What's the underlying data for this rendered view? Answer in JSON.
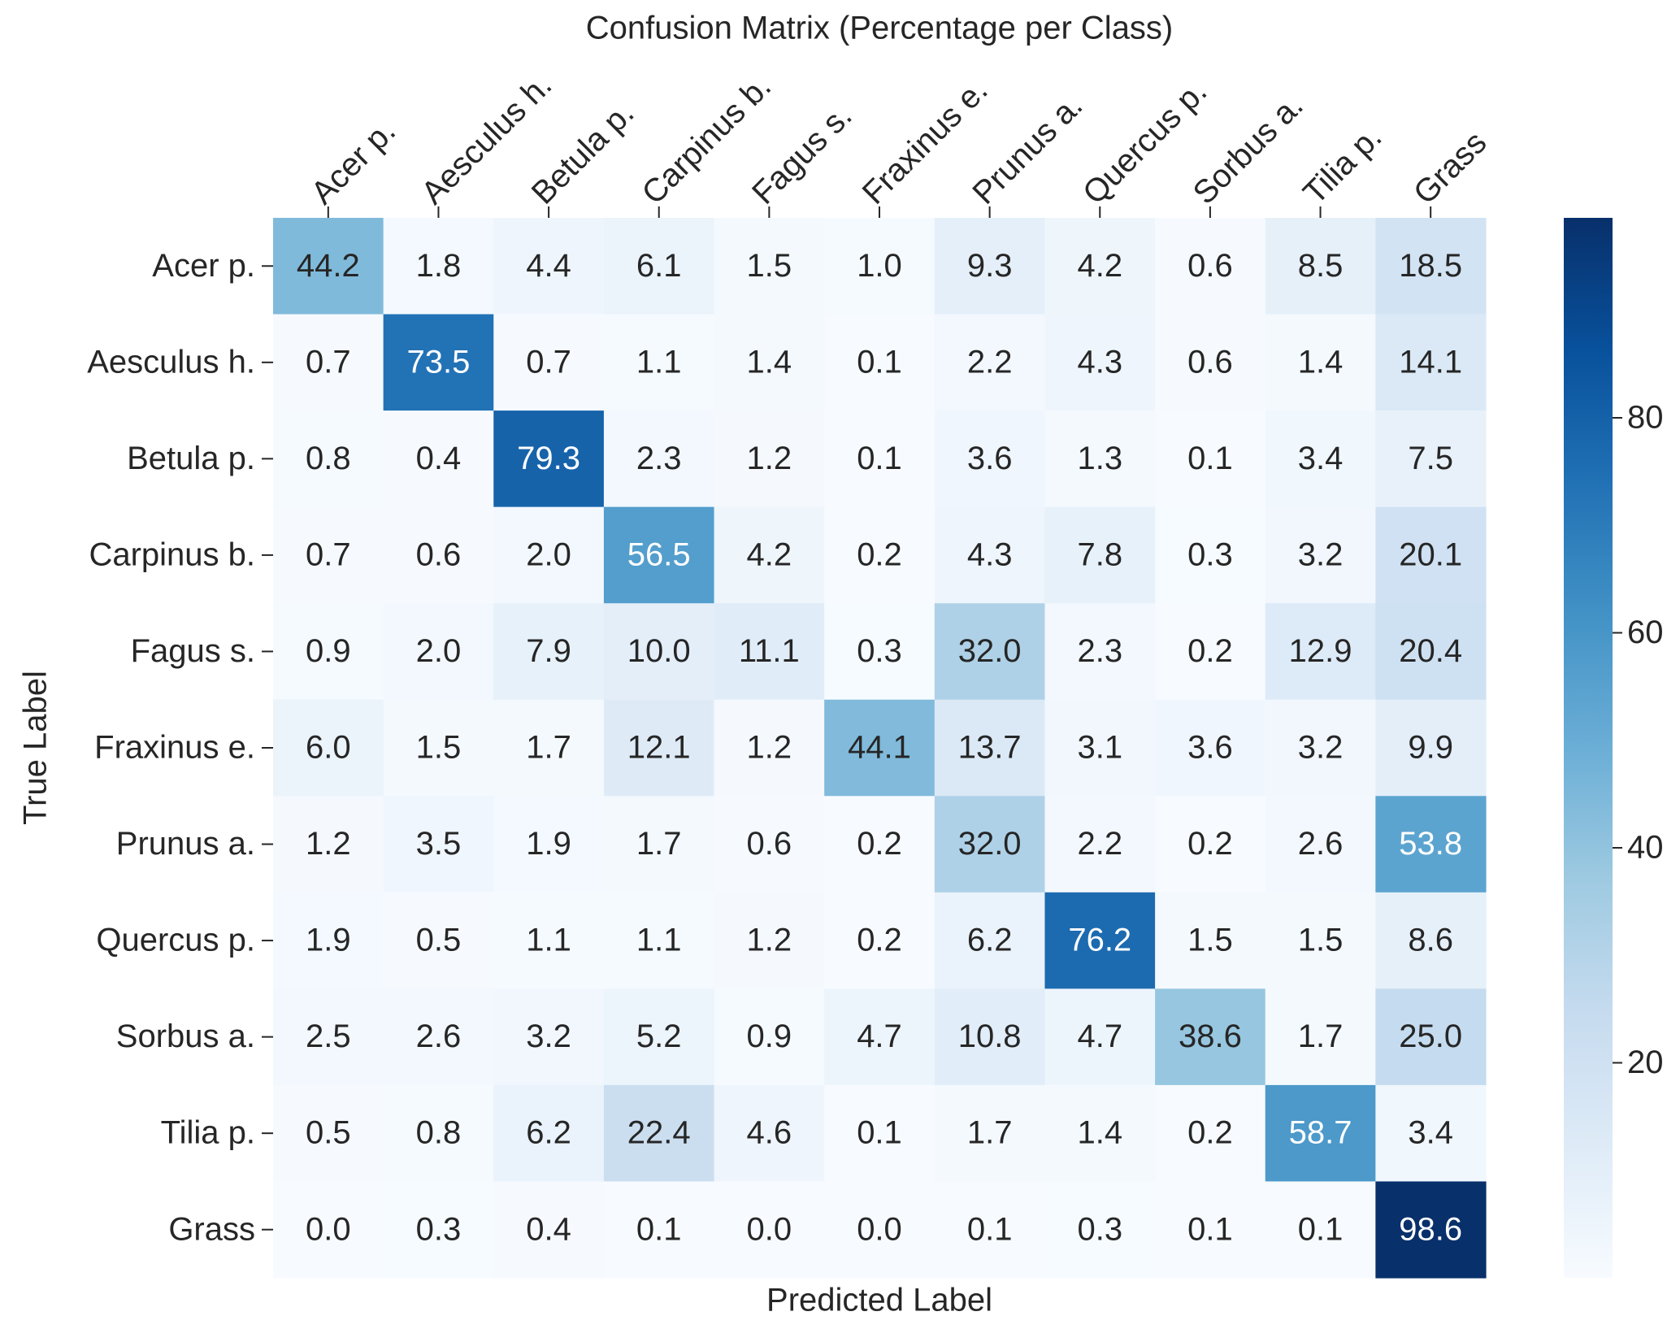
{
  "chart_data": {
    "type": "heatmap",
    "title": "Confusion Matrix (Percentage per Class)",
    "xlabel": "Predicted Label",
    "ylabel": "True Label",
    "x_categories": [
      "Acer p.",
      "Aesculus h.",
      "Betula p.",
      "Carpinus b.",
      "Fagus s.",
      "Fraxinus e.",
      "Prunus a.",
      "Quercus p.",
      "Sorbus a.",
      "Tilia p.",
      "Grass"
    ],
    "y_categories": [
      "Acer p.",
      "Aesculus h.",
      "Betula p.",
      "Carpinus b.",
      "Fagus s.",
      "Fraxinus e.",
      "Prunus a.",
      "Quercus p.",
      "Sorbus a.",
      "Tilia p.",
      "Grass"
    ],
    "values": [
      [
        44.2,
        1.8,
        4.4,
        6.1,
        1.5,
        1.0,
        9.3,
        4.2,
        0.6,
        8.5,
        18.5
      ],
      [
        0.7,
        73.5,
        0.7,
        1.1,
        1.4,
        0.1,
        2.2,
        4.3,
        0.6,
        1.4,
        14.1
      ],
      [
        0.8,
        0.4,
        79.3,
        2.3,
        1.2,
        0.1,
        3.6,
        1.3,
        0.1,
        3.4,
        7.5
      ],
      [
        0.7,
        0.6,
        2.0,
        56.5,
        4.2,
        0.2,
        4.3,
        7.8,
        0.3,
        3.2,
        20.1
      ],
      [
        0.9,
        2.0,
        7.9,
        10.0,
        11.1,
        0.3,
        32.0,
        2.3,
        0.2,
        12.9,
        20.4
      ],
      [
        6.0,
        1.5,
        1.7,
        12.1,
        1.2,
        44.1,
        13.7,
        3.1,
        3.6,
        3.2,
        9.9
      ],
      [
        1.2,
        3.5,
        1.9,
        1.7,
        0.6,
        0.2,
        32.0,
        2.2,
        0.2,
        2.6,
        53.8
      ],
      [
        1.9,
        0.5,
        1.1,
        1.1,
        1.2,
        0.2,
        6.2,
        76.2,
        1.5,
        1.5,
        8.6
      ],
      [
        2.5,
        2.6,
        3.2,
        5.2,
        0.9,
        4.7,
        10.8,
        4.7,
        38.6,
        1.7,
        25.0
      ],
      [
        0.5,
        0.8,
        6.2,
        22.4,
        4.6,
        0.1,
        1.7,
        1.4,
        0.2,
        58.7,
        3.4
      ],
      [
        0.0,
        0.3,
        0.4,
        0.1,
        0.0,
        0.0,
        0.1,
        0.3,
        0.1,
        0.1,
        98.6
      ]
    ],
    "value_labels": [
      [
        "44.2",
        "1.8",
        "4.4",
        "6.1",
        "1.5",
        "1.0",
        "9.3",
        "4.2",
        "0.6",
        "8.5",
        "18.5"
      ],
      [
        "0.7",
        "73.5",
        "0.7",
        "1.1",
        "1.4",
        "0.1",
        "2.2",
        "4.3",
        "0.6",
        "1.4",
        "14.1"
      ],
      [
        "0.8",
        "0.4",
        "79.3",
        "2.3",
        "1.2",
        "0.1",
        "3.6",
        "1.3",
        "0.1",
        "3.4",
        "7.5"
      ],
      [
        "0.7",
        "0.6",
        "2.0",
        "56.5",
        "4.2",
        "0.2",
        "4.3",
        "7.8",
        "0.3",
        "3.2",
        "20.1"
      ],
      [
        "0.9",
        "2.0",
        "7.9",
        "10.0",
        "11.1",
        "0.3",
        "32.0",
        "2.3",
        "0.2",
        "12.9",
        "20.4"
      ],
      [
        "6.0",
        "1.5",
        "1.7",
        "12.1",
        "1.2",
        "44.1",
        "13.7",
        "3.1",
        "3.6",
        "3.2",
        "9.9"
      ],
      [
        "1.2",
        "3.5",
        "1.9",
        "1.7",
        "0.6",
        "0.2",
        "32.0",
        "2.2",
        "0.2",
        "2.6",
        "53.8"
      ],
      [
        "1.9",
        "0.5",
        "1.1",
        "1.1",
        "1.2",
        "0.2",
        "6.2",
        "76.2",
        "1.5",
        "1.5",
        "8.6"
      ],
      [
        "2.5",
        "2.6",
        "3.2",
        "5.2",
        "0.9",
        "4.7",
        "10.8",
        "4.7",
        "38.6",
        "1.7",
        "25.0"
      ],
      [
        "0.5",
        "0.8",
        "6.2",
        "22.4",
        "4.6",
        "0.1",
        "1.7",
        "1.4",
        "0.2",
        "58.7",
        "3.4"
      ],
      [
        "0.0",
        "0.3",
        "0.4",
        "0.1",
        "0.0",
        "0.0",
        "0.1",
        "0.3",
        "0.1",
        "0.1",
        "98.6"
      ]
    ],
    "colormap": "Blues",
    "clim": [
      0,
      98.6
    ],
    "cbar_ticks": [
      20,
      40,
      60,
      80
    ]
  }
}
